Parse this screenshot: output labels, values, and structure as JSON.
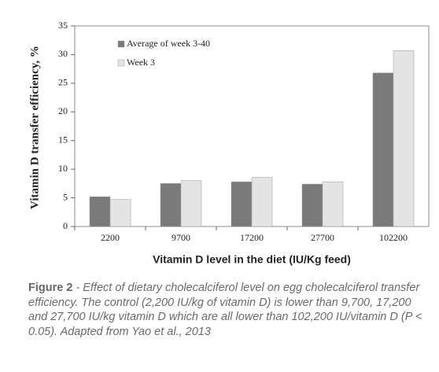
{
  "chart_data": {
    "type": "bar",
    "xlabel": "Vitamin D level in the diet (IU/Kg feed)",
    "ylabel": "Vitamin D transfer efficiency, %",
    "categories": [
      "2200",
      "9700",
      "17200",
      "27700",
      "102200"
    ],
    "series": [
      {
        "name": "Average of week 3-40",
        "color": "#7a7a7a",
        "values": [
          5.2,
          7.5,
          7.8,
          7.4,
          26.8
        ]
      },
      {
        "name": "Week 3",
        "color": "#e4e4e4",
        "values": [
          4.7,
          8.0,
          8.6,
          7.8,
          30.7
        ]
      }
    ],
    "ylim": [
      0,
      35
    ],
    "yticks": [
      0,
      5,
      10,
      15,
      20,
      25,
      30,
      35
    ],
    "legend": "upper left"
  },
  "caption": {
    "label": "Figure 2",
    "text": "- Effect of dietary cholecalciferol level on egg cholecalciferol transfer efficiency. The control (2,200 IU/kg of vitamin D) is lower than 9,700, 17,200 and 27,700 IU/kg vitamin D which are all lower than 102,200 IU/vitamin D (P < 0.05). Adapted from Yao et al., 2013"
  }
}
